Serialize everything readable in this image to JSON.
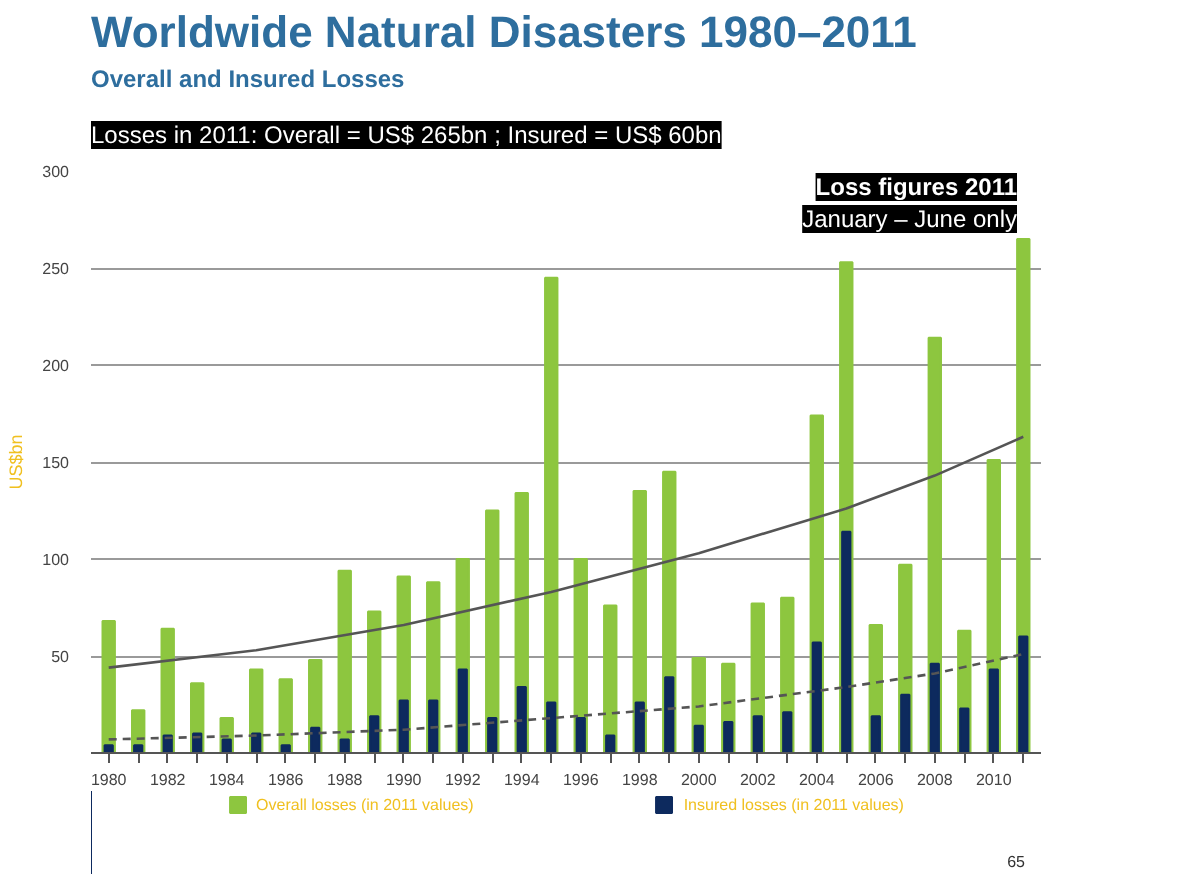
{
  "chart_data": {
    "type": "bar",
    "title": "Worldwide Natural Disasters 1980–2011",
    "subtitle": "Overall and Insured Losses",
    "ylabel": "US$bn",
    "annotations": [
      "Losses in 2011: Overall = US$ 265bn ; Insured = US$ 60bn",
      "Loss figures 2011",
      "January – June only",
      "65"
    ],
    "x": [
      1980,
      1981,
      1982,
      1983,
      1984,
      1985,
      1986,
      1987,
      1988,
      1989,
      1990,
      1991,
      1992,
      1993,
      1994,
      1995,
      1996,
      1997,
      1998,
      1999,
      2000,
      2001,
      2002,
      2003,
      2004,
      2005,
      2006,
      2007,
      2008,
      2009,
      2010,
      2011
    ],
    "series": [
      {
        "name": "Overall losses (in 2011 values)",
        "color": "#8dc63f",
        "values": [
          68,
          22,
          64,
          36,
          18,
          43,
          38,
          48,
          94,
          73,
          91,
          88,
          100,
          125,
          134,
          245,
          100,
          76,
          135,
          145,
          49,
          46,
          77,
          80,
          174,
          253,
          66,
          97,
          214,
          63,
          151,
          265
        ]
      },
      {
        "name": "Insured losses (in 2011 values)",
        "color": "#0d2a5e",
        "values": [
          4,
          4,
          9,
          10,
          7,
          10,
          4,
          13,
          7,
          19,
          27,
          27,
          43,
          18,
          34,
          26,
          18,
          9,
          26,
          39,
          14,
          16,
          19,
          21,
          57,
          114,
          19,
          30,
          46,
          23,
          43,
          60
        ]
      },
      {
        "type": "line",
        "color": "#555555",
        "line_style": "solid",
        "x": [
          1980,
          1985,
          1990,
          1995,
          2000,
          2005,
          2008,
          2011
        ],
        "values": [
          44,
          53,
          66,
          83,
          103,
          126,
          143,
          163
        ]
      },
      {
        "type": "line",
        "color": "#555555",
        "line_style": "dashed",
        "x": [
          1980,
          1985,
          1990,
          1995,
          2000,
          2005,
          2008,
          2011
        ],
        "values": [
          7,
          9,
          12,
          18,
          24,
          34,
          41,
          51
        ]
      }
    ],
    "xlim": [
      1979.4,
      2011.6
    ],
    "xticks": [
      1980,
      {
        "value": 1981,
        "label": null
      },
      1982,
      {
        "value": 1983,
        "label": null
      },
      1984,
      {
        "value": 1985,
        "label": null
      },
      1986,
      {
        "value": 1987,
        "label": null
      },
      1988,
      {
        "value": 1989,
        "label": null
      },
      1990,
      {
        "value": 1991,
        "label": null
      },
      1992,
      {
        "value": 1993,
        "label": null
      },
      1994,
      {
        "value": 1995,
        "label": null
      },
      1996,
      {
        "value": 1997,
        "label": null
      },
      1998,
      {
        "value": 1999,
        "label": null
      },
      2000,
      {
        "value": 2001,
        "label": null
      },
      2002,
      {
        "value": 2003,
        "label": null
      },
      2004,
      {
        "value": 2005,
        "label": null
      },
      2006,
      {
        "value": 2007,
        "label": null
      },
      2008,
      {
        "value": 2009,
        "label": null
      },
      2010,
      {
        "value": 2011,
        "label": null
      }
    ],
    "ylim": [
      0,
      300
    ],
    "yticks": [
      50,
      100,
      150,
      200,
      250,
      300
    ],
    "grid": "y",
    "legend": "bottom"
  }
}
